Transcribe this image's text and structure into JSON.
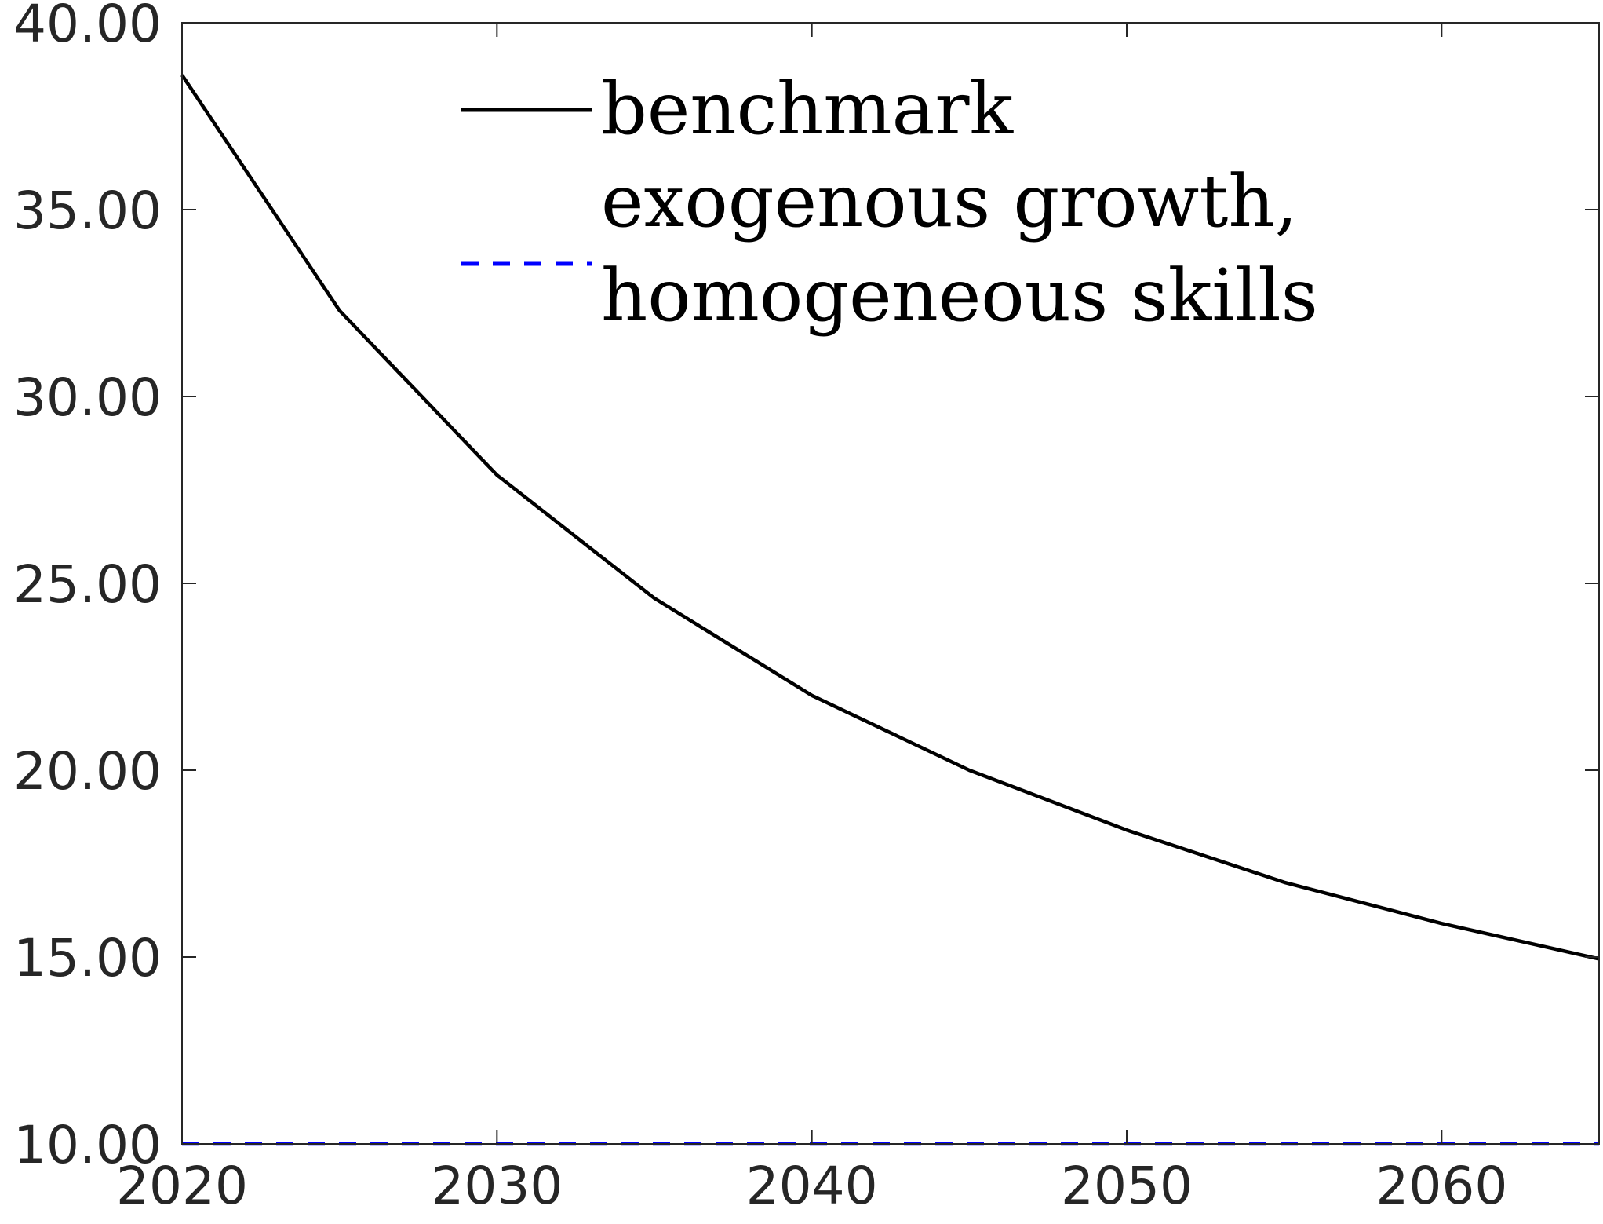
{
  "chart_data": {
    "type": "line",
    "title": "",
    "xlabel": "",
    "ylabel": "",
    "x": [
      2020,
      2025,
      2030,
      2035,
      2040,
      2045,
      2050,
      2055,
      2060,
      2065
    ],
    "series": [
      {
        "name": "benchmark",
        "values": [
          38.6,
          32.3,
          27.9,
          24.6,
          22.0,
          20.0,
          18.4,
          17.0,
          15.9,
          14.95
        ],
        "color": "#000000",
        "style": "solid"
      },
      {
        "name": "exogenous growth, homogeneous skills",
        "name_lines": [
          "exogenous growth,",
          "homogeneous skills"
        ],
        "values": [
          10.0,
          10.0,
          10.0,
          10.0,
          10.0,
          10.0,
          10.0,
          10.0,
          10.0,
          10.0
        ],
        "color": "#0000ff",
        "style": "dashed"
      }
    ],
    "xlim": [
      2020,
      2065
    ],
    "ylim": [
      10,
      40
    ],
    "xticks": [
      2020,
      2030,
      2040,
      2050,
      2060
    ],
    "xtick_labels": [
      "2020",
      "2030",
      "2040",
      "2050",
      "2060"
    ],
    "yticks": [
      10,
      15,
      20,
      25,
      30,
      35,
      40
    ],
    "ytick_labels": [
      "10.00",
      "15.00",
      "20.00",
      "25.00",
      "30.00",
      "35.00",
      "40.00"
    ],
    "grid": false,
    "legend_position": "top-center",
    "axis_color": "#262626"
  }
}
